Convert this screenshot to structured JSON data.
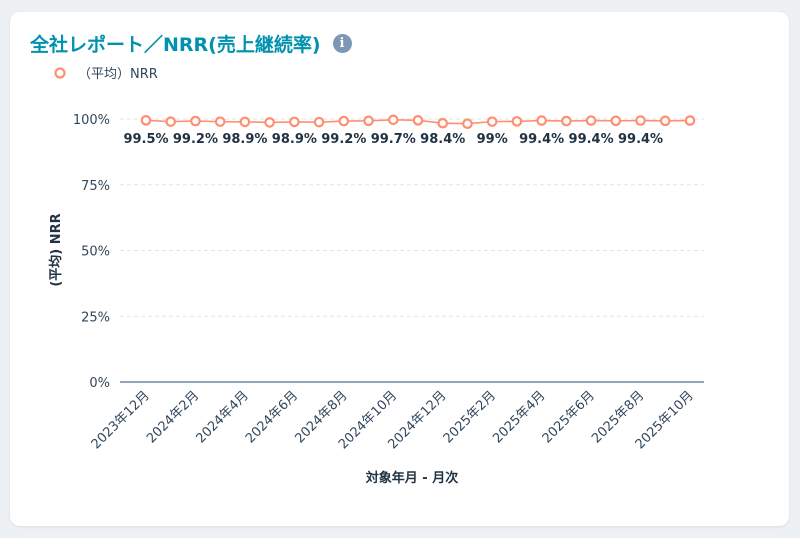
{
  "card": {
    "title": "全社レポート／NRR(売上継続率)",
    "info_icon": "info-icon"
  },
  "colors": {
    "series": "#ff8f73",
    "accent": "#0091ae",
    "axis": "#516f90",
    "text": "#33475b"
  },
  "chart_data": {
    "type": "line",
    "title": "全社レポート／NRR(売上継続率)",
    "xlabel": "対象年月 - 月次",
    "ylabel": "(平均) NRR",
    "ylim": [
      0,
      100
    ],
    "y_ticks": [
      "0%",
      "25%",
      "50%",
      "75%",
      "100%"
    ],
    "y_tick_values": [
      0,
      25,
      50,
      75,
      100
    ],
    "legend": "top-left",
    "grid": true,
    "x": [
      "2023年12月",
      "2024年1月",
      "2024年2月",
      "2024年3月",
      "2024年4月",
      "2024年5月",
      "2024年6月",
      "2024年7月",
      "2024年8月",
      "2024年9月",
      "2024年10月",
      "2024年11月",
      "2024年12月",
      "2025年1月",
      "2025年2月",
      "2025年3月",
      "2025年4月",
      "2025年5月",
      "2025年6月",
      "2025年7月",
      "2025年8月",
      "2025年9月",
      "2025年10月"
    ],
    "x_tick_labels": [
      "2023年12月",
      "2024年2月",
      "2024年4月",
      "2024年6月",
      "2024年8月",
      "2024年10月",
      "2024年12月",
      "2025年2月",
      "2025年4月",
      "2025年6月",
      "2025年8月",
      "2025年10月"
    ],
    "series": [
      {
        "name": "（平均）NRR",
        "values": [
          99.5,
          99.0,
          99.2,
          99.0,
          98.9,
          98.7,
          98.9,
          98.8,
          99.2,
          99.3,
          99.7,
          99.5,
          98.4,
          98.2,
          99.0,
          99.1,
          99.4,
          99.2,
          99.4,
          99.3,
          99.4,
          99.3,
          99.4
        ],
        "data_labels": [
          "99.5%",
          null,
          "99.2%",
          null,
          "98.9%",
          null,
          "98.9%",
          null,
          "99.2%",
          null,
          "99.7%",
          null,
          "98.4%",
          null,
          "99%",
          null,
          "99.4%",
          null,
          "99.4%",
          null,
          "99.4%",
          null,
          null
        ]
      }
    ]
  }
}
